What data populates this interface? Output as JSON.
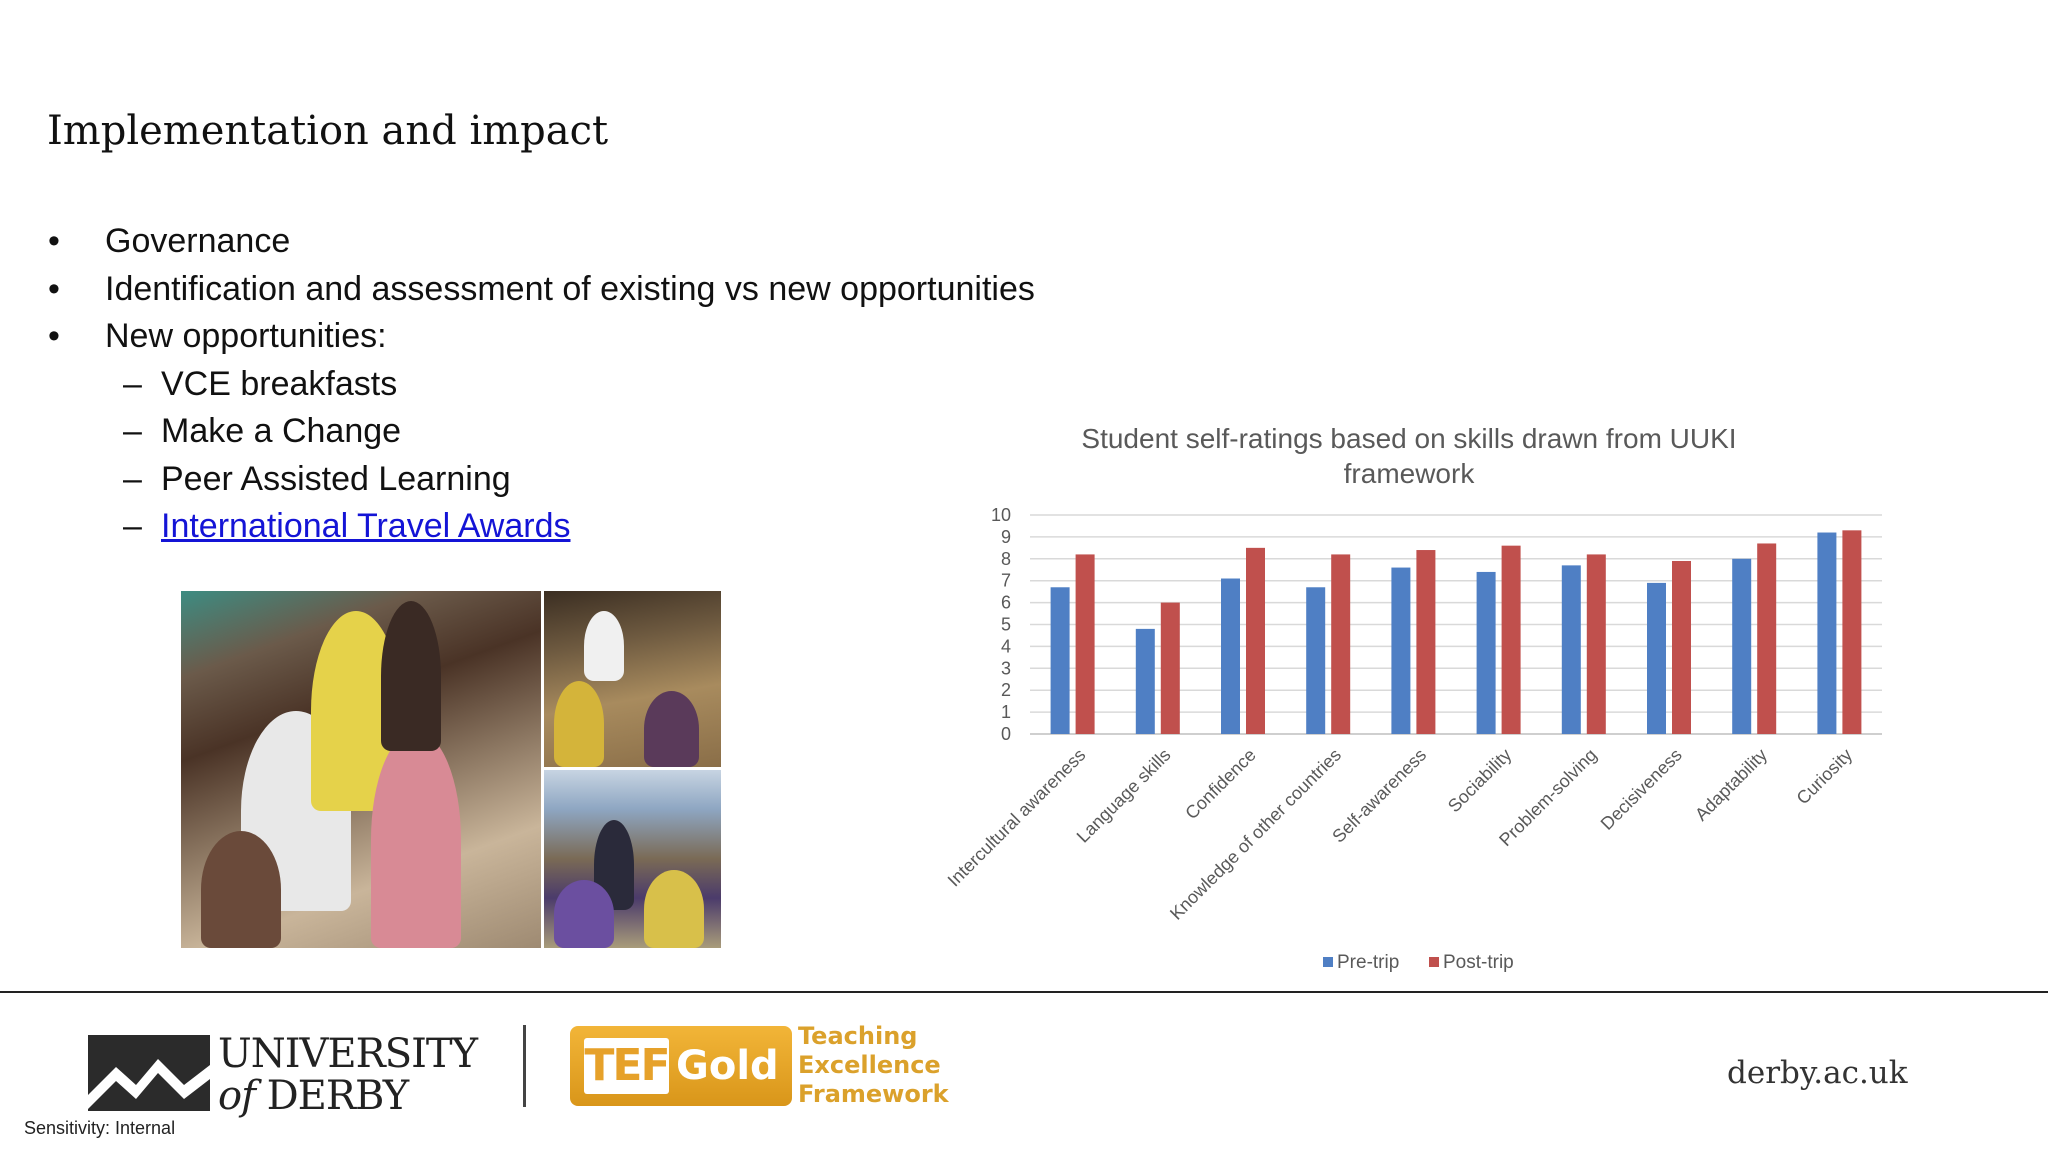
{
  "slide": {
    "title": "Implementation and impact",
    "bullets": [
      {
        "marker": "•",
        "text": "Governance"
      },
      {
        "marker": "•",
        "text": "Identification and assessment of existing vs new opportunities"
      },
      {
        "marker": "•",
        "text": "New opportunities:"
      }
    ],
    "sub_bullets": [
      {
        "marker": "–",
        "text": "VCE breakfasts"
      },
      {
        "marker": "–",
        "text": "Make a Change"
      },
      {
        "marker": "–",
        "text": "Peer Assisted Learning"
      },
      {
        "marker": "–",
        "text": "International Travel Awards"
      }
    ]
  },
  "chart_data": {
    "type": "bar",
    "title": "Student self-ratings based on skills drawn from UUKI framework",
    "title_lines": [
      "Student self-ratings based on skills drawn from UUKI",
      "framework"
    ],
    "categories": [
      "Intercultural awareness",
      "Language skills",
      "Confidence",
      "Knowledge of other countries",
      "Self-awareness",
      "Sociability",
      "Problem-solving",
      "Decisiveness",
      "Adaptability",
      "Curiosity"
    ],
    "series": [
      {
        "name": "Pre-trip",
        "color": "#4f7fc4",
        "values": [
          6.7,
          4.8,
          7.1,
          6.7,
          7.6,
          7.4,
          7.7,
          6.9,
          8.0,
          9.2
        ]
      },
      {
        "name": "Post-trip",
        "color": "#c0504d",
        "values": [
          8.2,
          6.0,
          8.5,
          8.2,
          8.4,
          8.6,
          8.2,
          7.9,
          8.7,
          9.3
        ]
      }
    ],
    "yticks": [
      "0",
      "1",
      "2",
      "3",
      "4",
      "5",
      "6",
      "7",
      "8",
      "9",
      "10"
    ],
    "ylim": [
      0,
      10
    ],
    "grid": true,
    "legend_position": "bottom"
  },
  "footer": {
    "university_line1": "UNIVERSITY",
    "university_line2_of": "of",
    "university_line2_name": "DERBY",
    "tef_abbr": "TEF",
    "tef_level": "Gold",
    "tef_words": [
      "Teaching",
      "Excellence",
      "Framework"
    ],
    "website": "derby.ac.uk",
    "sensitivity": "Sensitivity: Internal"
  }
}
